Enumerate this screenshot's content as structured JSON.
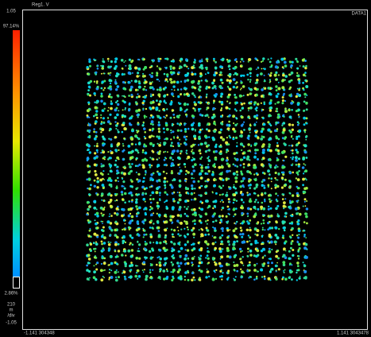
{
  "header": {
    "trace_label": "Reg1. V",
    "data_label": "DATA1"
  },
  "color_scale": {
    "top_value": "1.05",
    "max_percent": "97.14%",
    "min_percent": "2.86%"
  },
  "scale": {
    "per_div_value": "210",
    "per_div_unit": "m",
    "per_div_suffix": "/div",
    "bottom_value": "-1.05"
  },
  "x_axis": {
    "left_value": "-1.141 304348",
    "right_value": "1.141 3043478"
  }
}
